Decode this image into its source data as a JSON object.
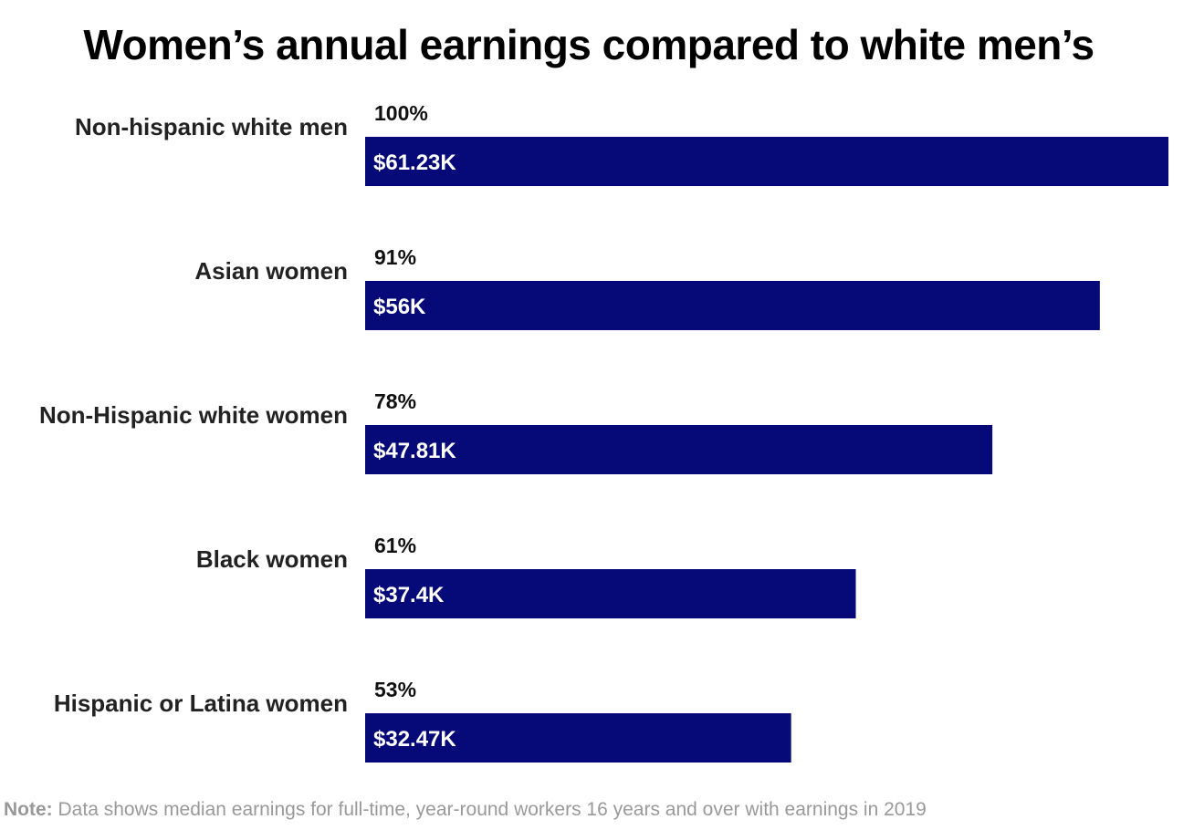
{
  "chart_data": {
    "type": "bar",
    "orientation": "horizontal",
    "title": "Women’s annual earnings compared to white men’s",
    "categories": [
      "Non-hispanic white men",
      "Asian women",
      "Non-Hispanic white women",
      "Black women",
      "Hispanic or Latina women"
    ],
    "values": [
      61.23,
      56,
      47.81,
      37.4,
      32.47
    ],
    "value_labels": [
      "$61.23K",
      "$56K",
      "$47.81K",
      "$37.4K",
      "$32.47K"
    ],
    "percent_labels": [
      "100%",
      "91%",
      "78%",
      "61%",
      "53%"
    ],
    "xlim": [
      0,
      61.23
    ],
    "grid": false,
    "legend": "none",
    "bar_color": "#060a78"
  },
  "note": {
    "label": "Note:",
    "text": "Data shows median earnings for full-time, year-round workers 16 years and over with earnings in 2019"
  }
}
